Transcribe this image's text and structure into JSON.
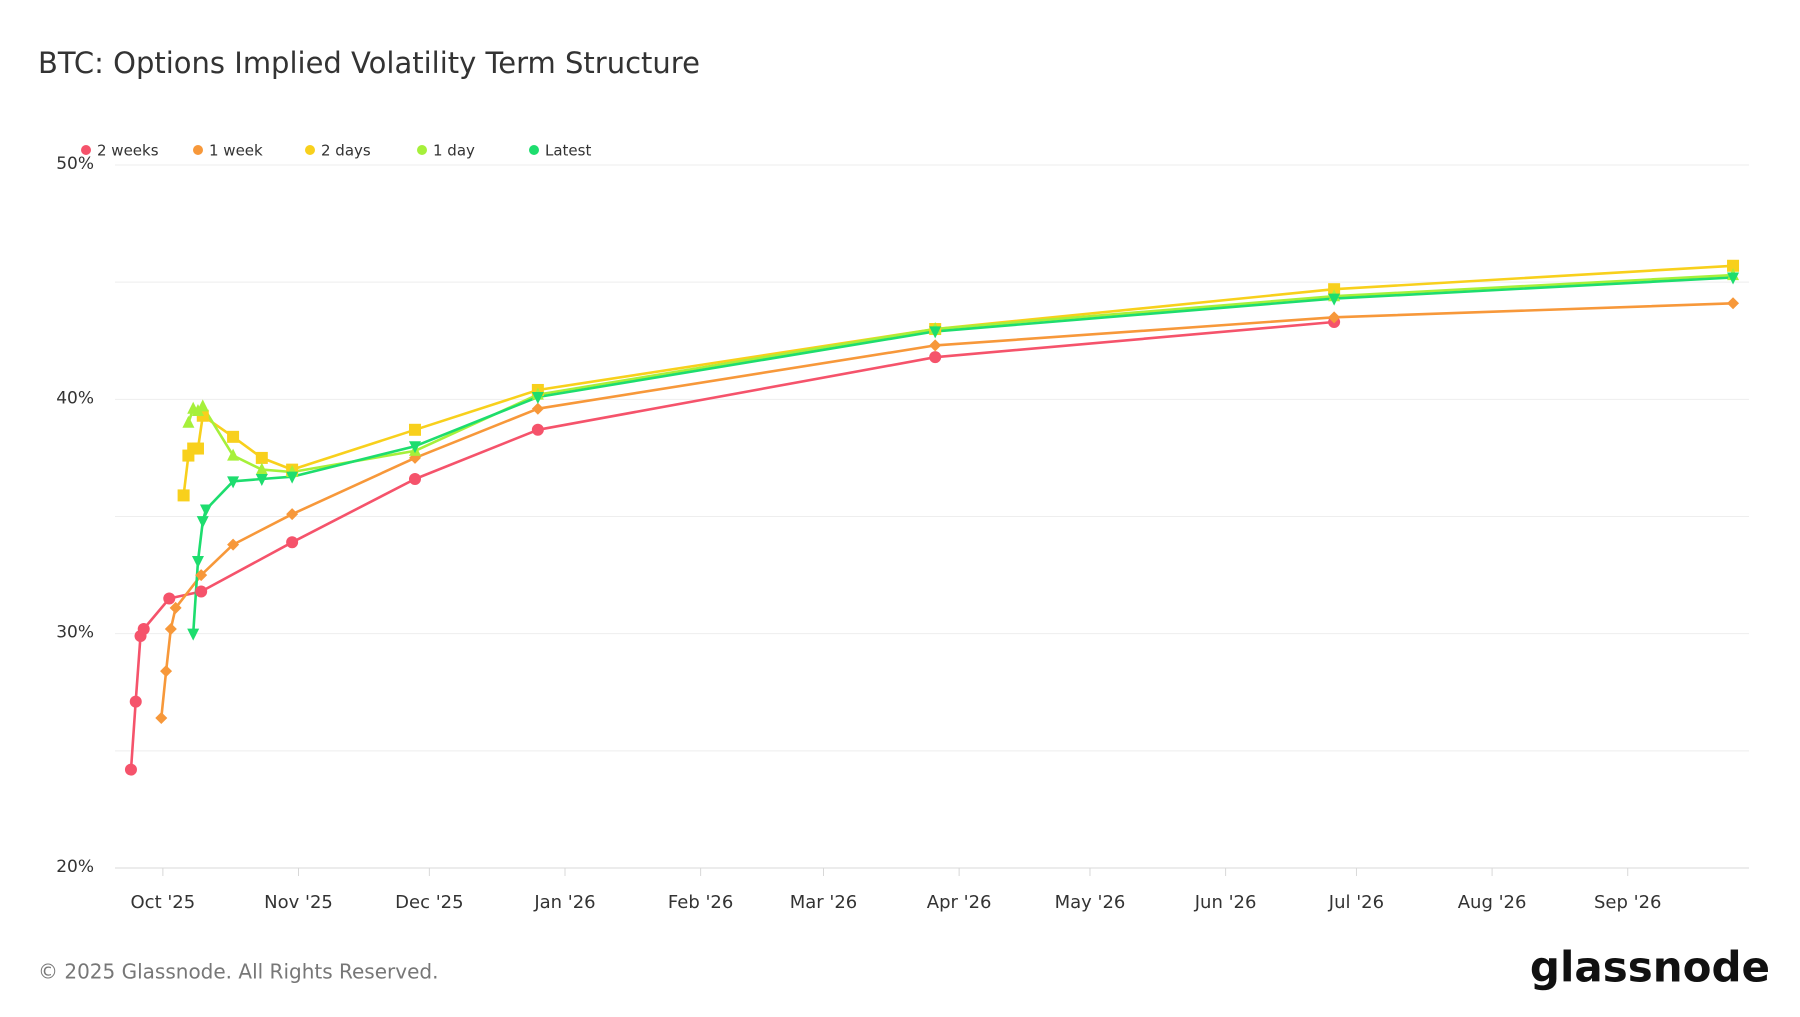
{
  "chart_data": {
    "type": "line",
    "title": "BTC: Options Implied Volatility Term Structure",
    "footer": "© 2025 Glassnode. All Rights Reserved.",
    "brand": "glassnode",
    "xlim": [
      2025.718,
      2026.742
    ],
    "xticks": [
      {
        "value": 2025.748,
        "label": "Oct '25"
      },
      {
        "value": 2025.833,
        "label": "Nov '25"
      },
      {
        "value": 2025.915,
        "label": "Dec '25"
      },
      {
        "value": 2026.0,
        "label": "Jan '26"
      },
      {
        "value": 2026.085,
        "label": "Feb '26"
      },
      {
        "value": 2026.162,
        "label": "Mar '26"
      },
      {
        "value": 2026.247,
        "label": "Apr '26"
      },
      {
        "value": 2026.329,
        "label": "May '26"
      },
      {
        "value": 2026.414,
        "label": "Jun '26"
      },
      {
        "value": 2026.496,
        "label": "Jul '26"
      },
      {
        "value": 2026.581,
        "label": "Aug '26"
      },
      {
        "value": 2026.666,
        "label": "Sep '26"
      }
    ],
    "ylim": [
      20,
      50
    ],
    "yticks": [
      {
        "value": 20,
        "label": "20%"
      },
      {
        "value": 30,
        "label": "30%"
      },
      {
        "value": 40,
        "label": "40%"
      },
      {
        "value": 50,
        "label": "50%"
      }
    ],
    "minor_yticks": [
      25,
      35,
      45
    ],
    "grid": true,
    "legend": "top-left",
    "series": [
      {
        "name": "2 weeks",
        "color": "#f5536b",
        "marker": "circle",
        "x": [
          2025.728,
          2025.731,
          2025.734,
          2025.736,
          2025.752,
          2025.772,
          2025.829,
          2025.906,
          2025.983,
          2026.232,
          2026.482
        ],
        "values": [
          24.2,
          27.1,
          29.9,
          30.2,
          31.5,
          31.8,
          33.9,
          36.6,
          38.7,
          41.8,
          43.3
        ]
      },
      {
        "name": "1 week",
        "color": "#f7983a",
        "marker": "diamond",
        "x": [
          2025.747,
          2025.75,
          2025.753,
          2025.756,
          2025.772,
          2025.792,
          2025.829,
          2025.906,
          2025.983,
          2026.232,
          2026.482,
          2026.732
        ],
        "values": [
          26.4,
          28.4,
          30.2,
          31.1,
          32.5,
          33.8,
          35.1,
          37.5,
          39.6,
          42.3,
          43.5,
          44.1
        ]
      },
      {
        "name": "2 days",
        "color": "#f8d01c",
        "marker": "square",
        "x": [
          2025.761,
          2025.764,
          2025.767,
          2025.77,
          2025.773,
          2025.792,
          2025.81,
          2025.829,
          2025.906,
          2025.983,
          2026.232,
          2026.482,
          2026.732
        ],
        "values": [
          35.9,
          37.6,
          37.9,
          37.9,
          39.3,
          38.4,
          37.5,
          37.0,
          38.7,
          40.4,
          43.0,
          44.7,
          45.7
        ]
      },
      {
        "name": "1 day",
        "color": "#a6f03a",
        "marker": "triangle-up",
        "x": [
          2025.764,
          2025.767,
          2025.77,
          2025.773,
          2025.792,
          2025.81,
          2025.829,
          2025.906,
          2025.983,
          2026.232,
          2026.482,
          2026.732
        ],
        "values": [
          39.0,
          39.6,
          39.5,
          39.7,
          37.6,
          37.0,
          36.9,
          37.8,
          40.2,
          43.0,
          44.4,
          45.3
        ]
      },
      {
        "name": "Latest",
        "color": "#1ddd6e",
        "marker": "triangle-down",
        "x": [
          2025.767,
          2025.77,
          2025.773,
          2025.775,
          2025.792,
          2025.81,
          2025.829,
          2025.906,
          2025.983,
          2026.232,
          2026.482,
          2026.732
        ],
        "values": [
          30.0,
          33.1,
          34.8,
          35.3,
          36.5,
          36.6,
          36.7,
          38.0,
          40.1,
          42.9,
          44.3,
          45.2
        ]
      }
    ]
  }
}
